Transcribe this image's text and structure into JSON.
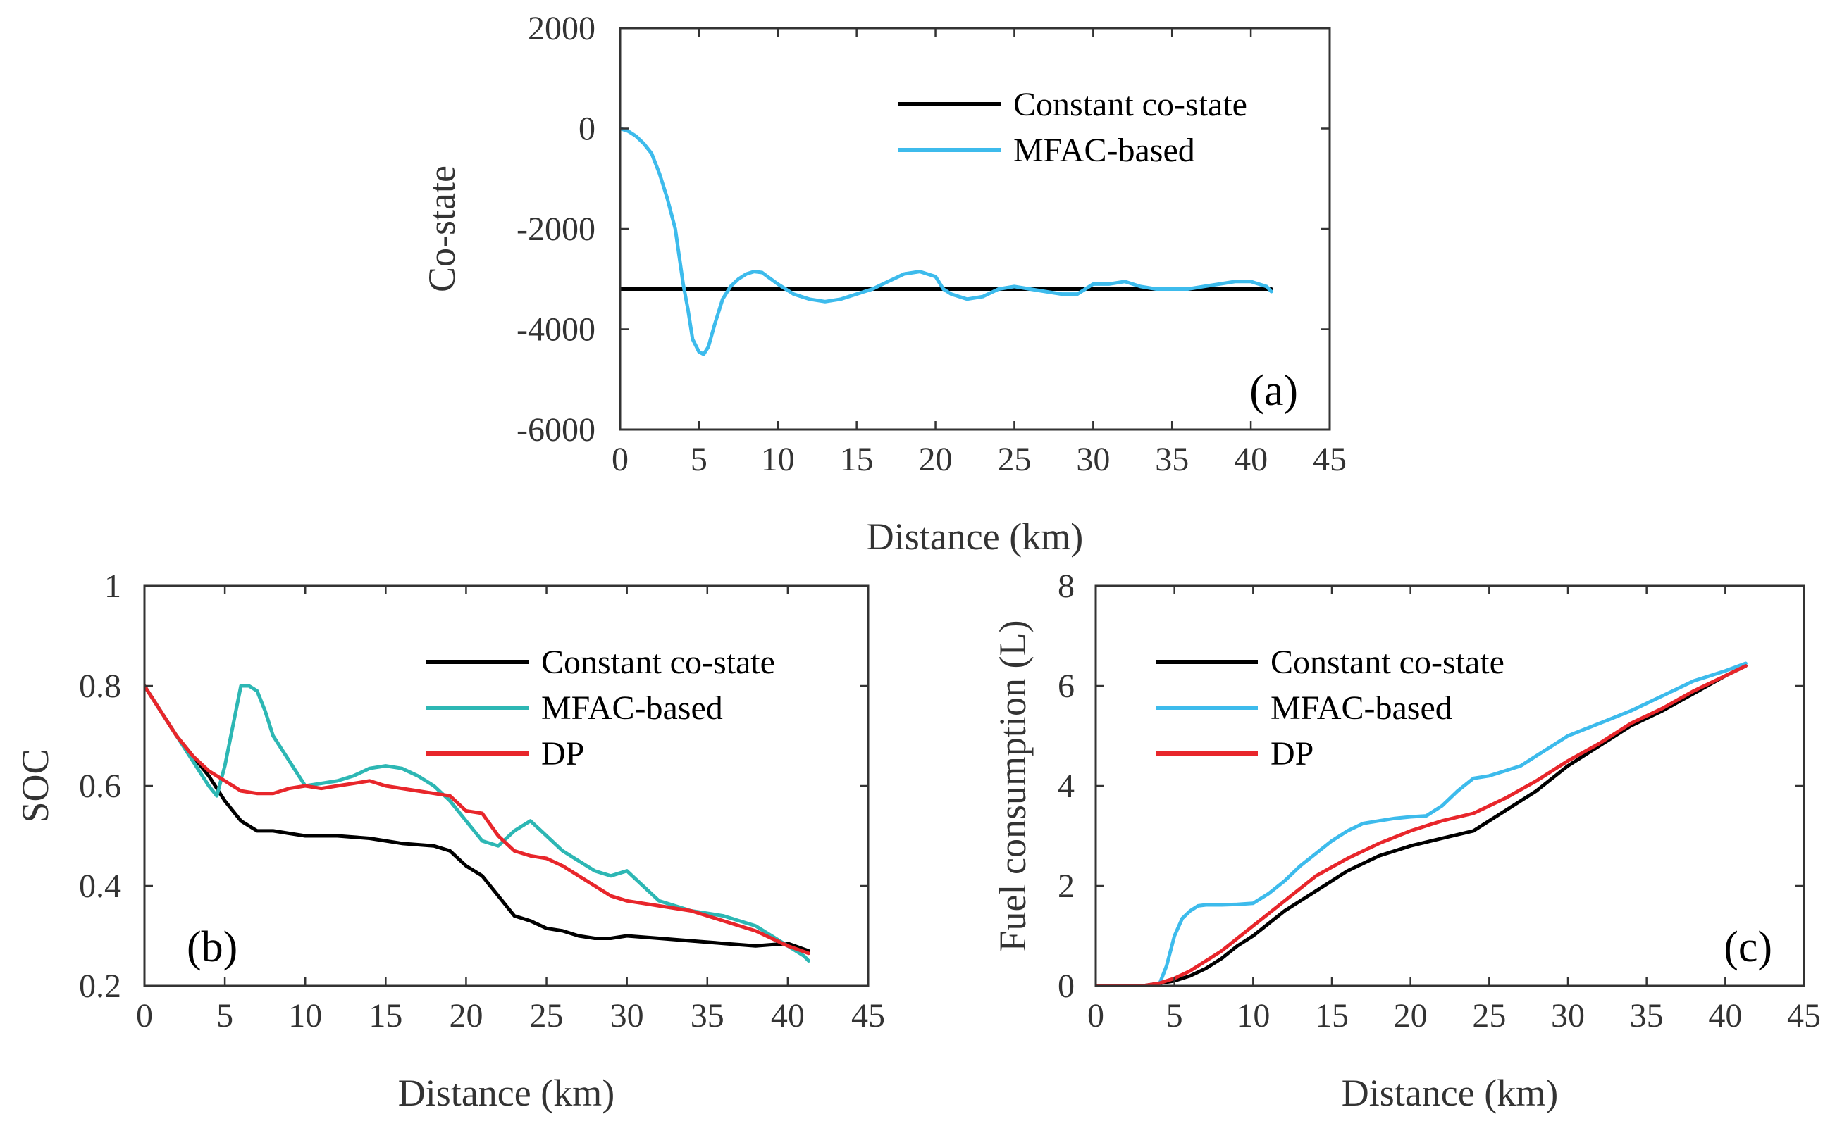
{
  "chart_data": [
    {
      "id": "a",
      "type": "line",
      "panel_label": "(a)",
      "xlabel": "Distance (km)",
      "ylabel": "Co-state",
      "xlim": [
        0,
        45
      ],
      "ylim": [
        -6000,
        2000
      ],
      "xticks": [
        0,
        5,
        10,
        15,
        20,
        25,
        30,
        35,
        40,
        45
      ],
      "yticks": [
        -6000,
        -4000,
        -2000,
        0,
        2000
      ],
      "legend_position": "top-right",
      "series": [
        {
          "name": "Constant co-state",
          "color": "#000000",
          "x": [
            0,
            41.3
          ],
          "y": [
            -3200,
            -3200
          ]
        },
        {
          "name": "MFAC-based",
          "color": "#3dbbec",
          "x": [
            0,
            0.5,
            1,
            1.5,
            2,
            2.5,
            3,
            3.5,
            4,
            4.3,
            4.6,
            5.0,
            5.3,
            5.6,
            6.0,
            6.5,
            7.0,
            7.5,
            8.0,
            8.5,
            9.0,
            10,
            11,
            12,
            13,
            14,
            15,
            16,
            17,
            18,
            19,
            20,
            20.5,
            21,
            22,
            23,
            24,
            25,
            26,
            27,
            28,
            29,
            30,
            31,
            32,
            33,
            34,
            35,
            36,
            37,
            38,
            39,
            40,
            41,
            41.3
          ],
          "y": [
            0,
            -50,
            -150,
            -300,
            -500,
            -900,
            -1400,
            -2000,
            -3100,
            -3600,
            -4200,
            -4450,
            -4500,
            -4350,
            -3900,
            -3400,
            -3150,
            -3000,
            -2900,
            -2850,
            -2870,
            -3100,
            -3300,
            -3400,
            -3450,
            -3400,
            -3300,
            -3200,
            -3050,
            -2900,
            -2850,
            -2950,
            -3200,
            -3300,
            -3400,
            -3350,
            -3200,
            -3150,
            -3200,
            -3250,
            -3300,
            -3300,
            -3100,
            -3100,
            -3050,
            -3150,
            -3200,
            -3200,
            -3200,
            -3150,
            -3100,
            -3050,
            -3050,
            -3150,
            -3250
          ]
        }
      ]
    },
    {
      "id": "b",
      "type": "line",
      "panel_label": "(b)",
      "xlabel": "Distance (km)",
      "ylabel": "SOC",
      "xlim": [
        0,
        45
      ],
      "ylim": [
        0.2,
        1
      ],
      "xticks": [
        0,
        5,
        10,
        15,
        20,
        25,
        30,
        35,
        40,
        45
      ],
      "yticks": [
        0.2,
        0.4,
        0.6,
        0.8,
        1
      ],
      "legend_position": "top-right",
      "series": [
        {
          "name": "Constant co-state",
          "color": "#000000",
          "x": [
            0,
            1,
            2,
            3,
            4,
            5,
            6,
            7,
            8,
            9,
            10,
            12,
            14,
            16,
            18,
            19,
            20,
            21,
            22,
            23,
            24,
            25,
            26,
            27,
            28,
            29,
            30,
            32,
            34,
            36,
            38,
            40,
            41.3
          ],
          "y": [
            0.8,
            0.75,
            0.7,
            0.66,
            0.62,
            0.57,
            0.53,
            0.51,
            0.51,
            0.505,
            0.5,
            0.5,
            0.495,
            0.485,
            0.48,
            0.47,
            0.44,
            0.42,
            0.38,
            0.34,
            0.33,
            0.315,
            0.31,
            0.3,
            0.295,
            0.295,
            0.3,
            0.295,
            0.29,
            0.285,
            0.28,
            0.285,
            0.27
          ]
        },
        {
          "name": "MFAC-based",
          "color": "#2db7b4",
          "x": [
            0,
            1,
            2,
            3,
            4,
            4.5,
            5,
            5.5,
            6,
            6.5,
            7,
            7.5,
            8,
            9,
            10,
            11,
            12,
            13,
            14,
            15,
            16,
            17,
            18,
            19,
            20,
            21,
            22,
            23,
            24,
            25,
            26,
            27,
            28,
            29,
            30,
            31,
            32,
            33,
            34,
            35,
            36,
            37,
            38,
            39,
            40,
            41,
            41.3
          ],
          "y": [
            0.8,
            0.75,
            0.7,
            0.65,
            0.6,
            0.58,
            0.64,
            0.72,
            0.8,
            0.8,
            0.79,
            0.75,
            0.7,
            0.65,
            0.6,
            0.605,
            0.61,
            0.62,
            0.635,
            0.64,
            0.635,
            0.62,
            0.6,
            0.57,
            0.53,
            0.49,
            0.48,
            0.51,
            0.53,
            0.5,
            0.47,
            0.45,
            0.43,
            0.42,
            0.43,
            0.4,
            0.37,
            0.36,
            0.35,
            0.345,
            0.34,
            0.33,
            0.32,
            0.3,
            0.28,
            0.26,
            0.25
          ]
        },
        {
          "name": "DP",
          "color": "#e8262b",
          "x": [
            0,
            1,
            2,
            3,
            4,
            5,
            6,
            7,
            8,
            9,
            10,
            11,
            12,
            13,
            14,
            15,
            16,
            17,
            18,
            19,
            20,
            21,
            22,
            23,
            24,
            25,
            26,
            27,
            28,
            29,
            30,
            31,
            32,
            34,
            36,
            38,
            40,
            41.3
          ],
          "y": [
            0.8,
            0.75,
            0.7,
            0.66,
            0.63,
            0.61,
            0.59,
            0.585,
            0.585,
            0.595,
            0.6,
            0.595,
            0.6,
            0.605,
            0.61,
            0.6,
            0.595,
            0.59,
            0.585,
            0.58,
            0.55,
            0.545,
            0.5,
            0.47,
            0.46,
            0.455,
            0.44,
            0.42,
            0.4,
            0.38,
            0.37,
            0.365,
            0.36,
            0.35,
            0.33,
            0.31,
            0.28,
            0.265
          ]
        }
      ]
    },
    {
      "id": "c",
      "type": "line",
      "panel_label": "(c)",
      "xlabel": "Distance (km)",
      "ylabel": "Fuel consumption (L)",
      "xlim": [
        0,
        45
      ],
      "ylim": [
        0,
        8
      ],
      "xticks": [
        0,
        5,
        10,
        15,
        20,
        25,
        30,
        35,
        40,
        45
      ],
      "yticks": [
        0,
        2,
        4,
        6,
        8
      ],
      "legend_position": "top-left",
      "series": [
        {
          "name": "Constant co-state",
          "color": "#000000",
          "x": [
            0,
            3,
            4,
            5,
            6,
            7,
            8,
            9,
            10,
            12,
            14,
            16,
            18,
            20,
            22,
            24,
            26,
            28,
            30,
            32,
            34,
            36,
            38,
            40,
            41.3
          ],
          "y": [
            0,
            0,
            0.05,
            0.1,
            0.2,
            0.35,
            0.55,
            0.8,
            1.0,
            1.5,
            1.9,
            2.3,
            2.6,
            2.8,
            2.95,
            3.1,
            3.5,
            3.9,
            4.4,
            4.8,
            5.2,
            5.5,
            5.85,
            6.2,
            6.4
          ]
        },
        {
          "name": "MFAC-based",
          "color": "#3dbbec",
          "x": [
            0,
            4,
            4.5,
            5,
            5.5,
            6,
            6.5,
            7,
            8,
            9,
            10,
            11,
            12,
            13,
            14,
            15,
            16,
            17,
            18,
            19,
            20,
            21,
            22,
            23,
            24,
            25,
            26,
            27,
            28,
            29,
            30,
            32,
            34,
            36,
            38,
            40,
            41.3
          ],
          "y": [
            0,
            0,
            0.4,
            1.0,
            1.35,
            1.5,
            1.6,
            1.62,
            1.62,
            1.63,
            1.65,
            1.85,
            2.1,
            2.4,
            2.65,
            2.9,
            3.1,
            3.25,
            3.3,
            3.35,
            3.38,
            3.4,
            3.6,
            3.9,
            4.15,
            4.2,
            4.3,
            4.4,
            4.6,
            4.8,
            5.0,
            5.25,
            5.5,
            5.8,
            6.1,
            6.3,
            6.45
          ]
        },
        {
          "name": "DP",
          "color": "#e8262b",
          "x": [
            0,
            3,
            4,
            5,
            6,
            7,
            8,
            9,
            10,
            12,
            14,
            16,
            18,
            20,
            22,
            24,
            26,
            28,
            30,
            32,
            34,
            36,
            38,
            40,
            41.3
          ],
          "y": [
            0,
            0,
            0.05,
            0.15,
            0.3,
            0.5,
            0.7,
            0.95,
            1.2,
            1.7,
            2.2,
            2.55,
            2.85,
            3.1,
            3.3,
            3.45,
            3.75,
            4.1,
            4.5,
            4.85,
            5.25,
            5.55,
            5.9,
            6.2,
            6.4
          ]
        }
      ]
    }
  ]
}
